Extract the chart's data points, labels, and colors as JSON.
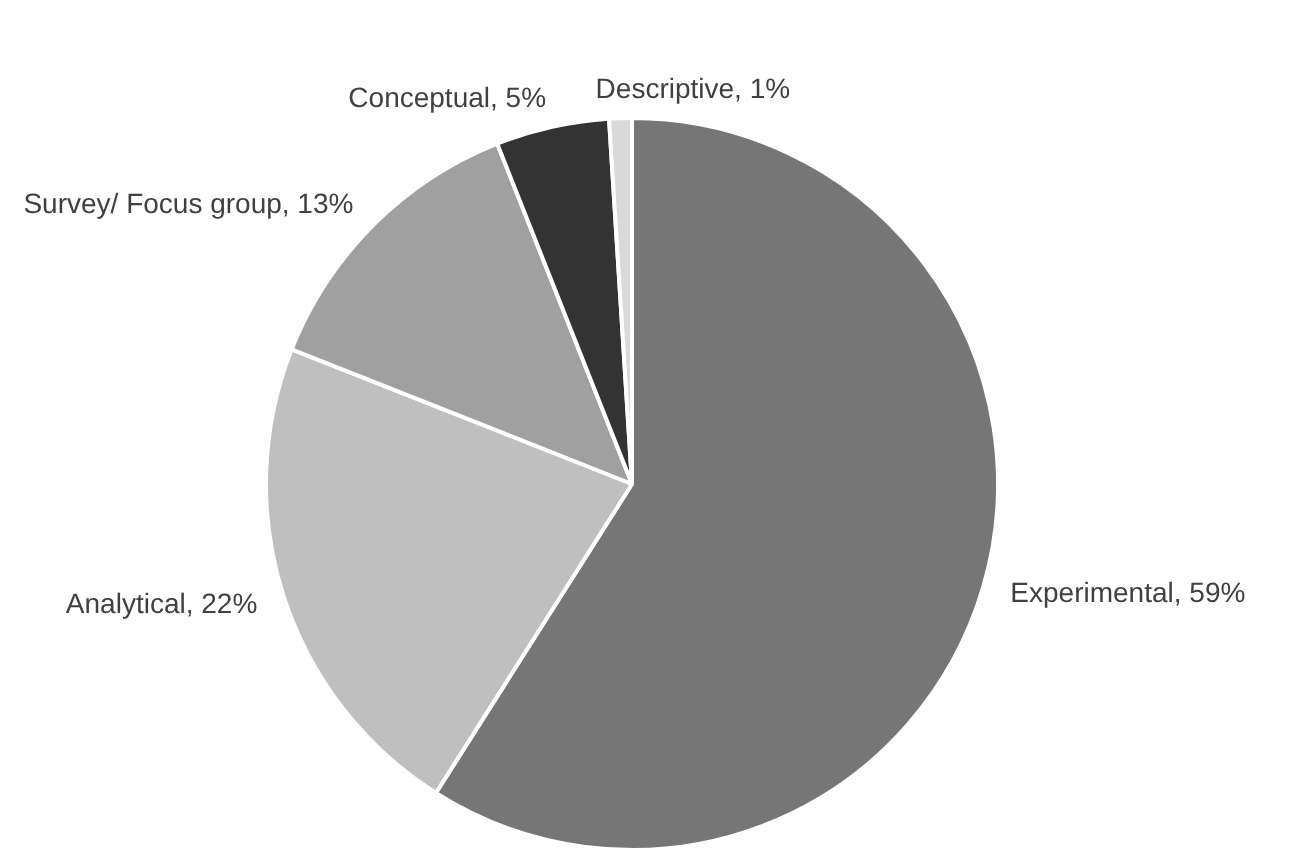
{
  "chart_data": {
    "type": "pie",
    "categories": [
      "Experimental",
      "Analytical",
      "Survey/ Focus group",
      "Conceptual",
      "Descriptive"
    ],
    "values": [
      59,
      22,
      13,
      5,
      1
    ],
    "colors": [
      "#767676",
      "#bfbfbf",
      "#a0a0a0",
      "#333333",
      "#d9d9d9"
    ],
    "value_labels": [
      "59%",
      "22%",
      "13%",
      "5%",
      "1%"
    ],
    "legend": false
  }
}
